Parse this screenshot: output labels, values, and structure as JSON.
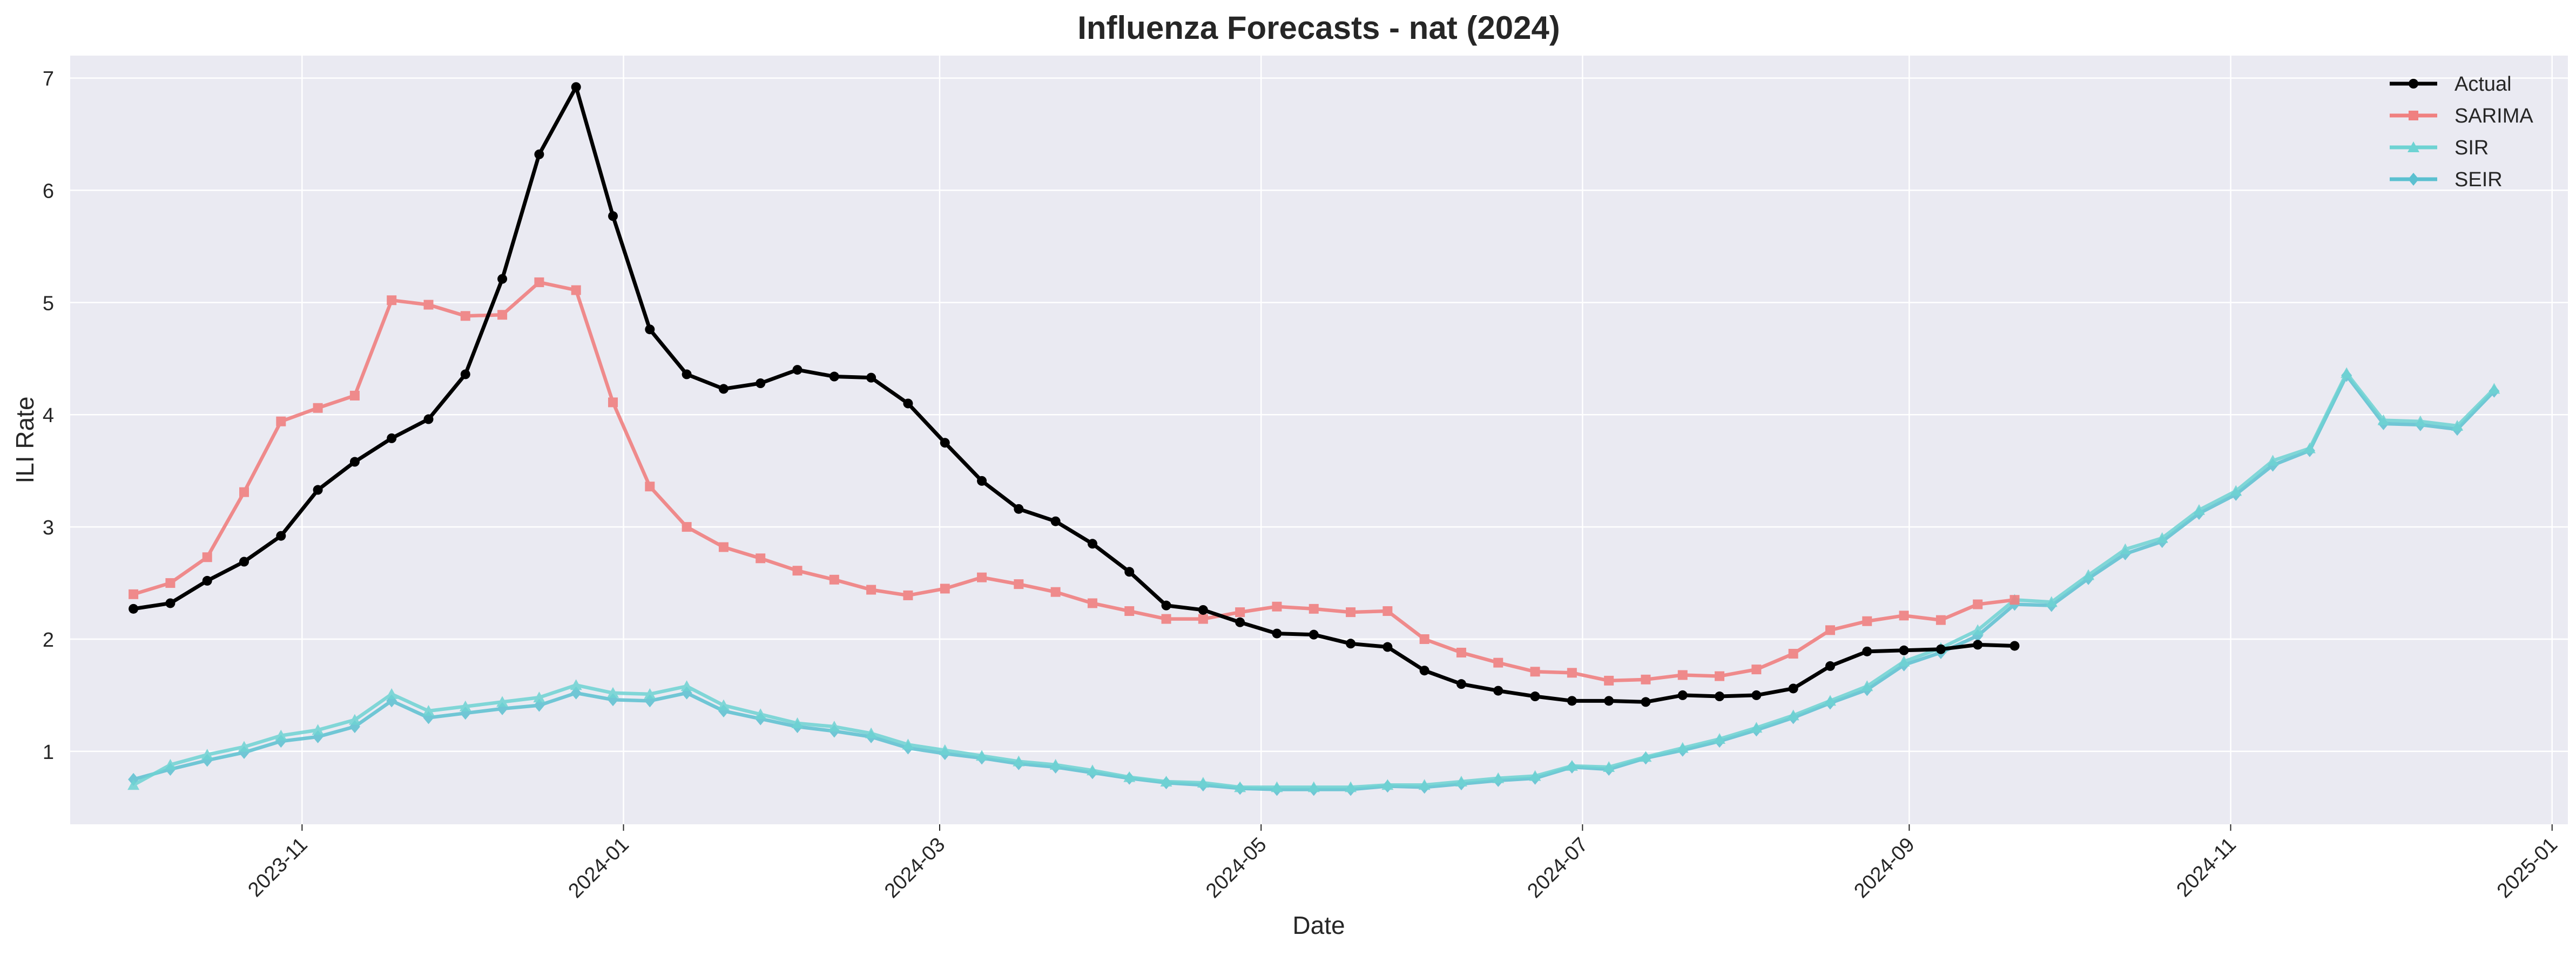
{
  "chart_data": {
    "type": "line",
    "title": "Influenza Forecasts - nat (2024)",
    "xlabel": "Date",
    "ylabel": "ILI Rate",
    "grid": true,
    "legend_position": "top-right",
    "xlim": [
      "2023-09-18",
      "2025-01-04"
    ],
    "ylim": [
      0.35,
      7.2
    ],
    "y_ticks": [
      1,
      2,
      3,
      4,
      5,
      6,
      7
    ],
    "x_ticks": [
      "2023-11",
      "2024-01",
      "2024-03",
      "2024-05",
      "2024-07",
      "2024-09",
      "2024-11",
      "2025-01"
    ],
    "series": [
      {
        "name": "Actual",
        "color": "#000000",
        "marker": "circle",
        "x": [
          "2023-09-30",
          "2023-10-07",
          "2023-10-14",
          "2023-10-21",
          "2023-10-28",
          "2023-11-04",
          "2023-11-11",
          "2023-11-18",
          "2023-11-25",
          "2023-12-02",
          "2023-12-09",
          "2023-12-16",
          "2023-12-23",
          "2023-12-30",
          "2024-01-06",
          "2024-01-13",
          "2024-01-20",
          "2024-01-27",
          "2024-02-03",
          "2024-02-10",
          "2024-02-17",
          "2024-02-24",
          "2024-03-02",
          "2024-03-09",
          "2024-03-16",
          "2024-03-23",
          "2024-03-30",
          "2024-04-06",
          "2024-04-13",
          "2024-04-20",
          "2024-04-27",
          "2024-05-04",
          "2024-05-11",
          "2024-05-18",
          "2024-05-25",
          "2024-06-01",
          "2024-06-08",
          "2024-06-15",
          "2024-06-22",
          "2024-06-29",
          "2024-07-06",
          "2024-07-13",
          "2024-07-20",
          "2024-07-27",
          "2024-08-03",
          "2024-08-10",
          "2024-08-17",
          "2024-08-24",
          "2024-08-31",
          "2024-09-07",
          "2024-09-14",
          "2024-09-21"
        ],
        "values": [
          2.27,
          2.32,
          2.52,
          2.69,
          2.92,
          3.33,
          3.58,
          3.79,
          3.96,
          4.36,
          5.21,
          6.32,
          6.92,
          5.77,
          4.76,
          4.36,
          4.23,
          4.28,
          4.4,
          4.34,
          4.33,
          4.1,
          3.75,
          3.41,
          3.16,
          3.05,
          2.85,
          2.6,
          2.3,
          2.26,
          2.15,
          2.05,
          2.04,
          1.96,
          1.93,
          1.72,
          1.6,
          1.54,
          1.49,
          1.45,
          1.45,
          1.44,
          1.5,
          1.49,
          1.5,
          1.56,
          1.76,
          1.89,
          1.9,
          1.91,
          1.95,
          1.94
        ]
      },
      {
        "name": "SARIMA",
        "color": "#f08080",
        "marker": "square",
        "x": [
          "2023-09-30",
          "2023-10-07",
          "2023-10-14",
          "2023-10-21",
          "2023-10-28",
          "2023-11-04",
          "2023-11-11",
          "2023-11-18",
          "2023-11-25",
          "2023-12-02",
          "2023-12-09",
          "2023-12-16",
          "2023-12-23",
          "2023-12-30",
          "2024-01-06",
          "2024-01-13",
          "2024-01-20",
          "2024-01-27",
          "2024-02-03",
          "2024-02-10",
          "2024-02-17",
          "2024-02-24",
          "2024-03-02",
          "2024-03-09",
          "2024-03-16",
          "2024-03-23",
          "2024-03-30",
          "2024-04-06",
          "2024-04-13",
          "2024-04-20",
          "2024-04-27",
          "2024-05-04",
          "2024-05-11",
          "2024-05-18",
          "2024-05-25",
          "2024-06-01",
          "2024-06-08",
          "2024-06-15",
          "2024-06-22",
          "2024-06-29",
          "2024-07-06",
          "2024-07-13",
          "2024-07-20",
          "2024-07-27",
          "2024-08-03",
          "2024-08-10",
          "2024-08-17",
          "2024-08-24",
          "2024-08-31",
          "2024-09-07",
          "2024-09-14",
          "2024-09-21"
        ],
        "values": [
          2.4,
          2.5,
          2.73,
          3.31,
          3.94,
          4.06,
          4.17,
          5.02,
          4.98,
          4.88,
          4.89,
          5.18,
          5.11,
          4.11,
          3.36,
          3.0,
          2.82,
          2.72,
          2.61,
          2.53,
          2.44,
          2.39,
          2.45,
          2.55,
          2.49,
          2.42,
          2.32,
          2.25,
          2.18,
          2.18,
          2.24,
          2.29,
          2.27,
          2.24,
          2.25,
          2.0,
          1.88,
          1.79,
          1.71,
          1.7,
          1.63,
          1.64,
          1.68,
          1.67,
          1.73,
          1.87,
          2.08,
          2.16,
          2.21,
          2.17,
          2.31,
          2.35
        ]
      },
      {
        "name": "SIR",
        "color": "#6ed3d3",
        "marker": "triangle",
        "x": [
          "2023-09-30",
          "2023-10-07",
          "2023-10-14",
          "2023-10-21",
          "2023-10-28",
          "2023-11-04",
          "2023-11-11",
          "2023-11-18",
          "2023-11-25",
          "2023-12-02",
          "2023-12-09",
          "2023-12-16",
          "2023-12-23",
          "2023-12-30",
          "2024-01-06",
          "2024-01-13",
          "2024-01-20",
          "2024-01-27",
          "2024-02-03",
          "2024-02-10",
          "2024-02-17",
          "2024-02-24",
          "2024-03-02",
          "2024-03-09",
          "2024-03-16",
          "2024-03-23",
          "2024-03-30",
          "2024-04-06",
          "2024-04-13",
          "2024-04-20",
          "2024-04-27",
          "2024-05-04",
          "2024-05-11",
          "2024-05-18",
          "2024-05-25",
          "2024-06-01",
          "2024-06-08",
          "2024-06-15",
          "2024-06-22",
          "2024-06-29",
          "2024-07-06",
          "2024-07-13",
          "2024-07-20",
          "2024-07-27",
          "2024-08-03",
          "2024-08-10",
          "2024-08-17",
          "2024-08-24",
          "2024-08-31",
          "2024-09-07",
          "2024-09-14",
          "2024-09-21",
          "2024-09-28",
          "2024-10-05",
          "2024-10-12",
          "2024-10-19",
          "2024-10-26",
          "2024-11-02",
          "2024-11-09",
          "2024-11-16",
          "2024-11-23",
          "2024-11-30",
          "2024-12-07",
          "2024-12-14",
          "2024-12-21"
        ],
        "values": [
          0.7,
          0.88,
          0.97,
          1.04,
          1.14,
          1.19,
          1.28,
          1.51,
          1.36,
          1.4,
          1.44,
          1.48,
          1.59,
          1.52,
          1.51,
          1.58,
          1.41,
          1.33,
          1.25,
          1.22,
          1.16,
          1.06,
          1.01,
          0.96,
          0.91,
          0.88,
          0.83,
          0.77,
          0.73,
          0.72,
          0.68,
          0.68,
          0.68,
          0.68,
          0.7,
          0.7,
          0.73,
          0.76,
          0.78,
          0.87,
          0.86,
          0.95,
          1.03,
          1.11,
          1.21,
          1.32,
          1.45,
          1.58,
          1.8,
          1.92,
          2.08,
          2.35,
          2.33,
          2.57,
          2.8,
          2.9,
          3.15,
          3.32,
          3.59,
          3.7,
          4.37,
          3.95,
          3.94,
          3.9,
          4.23
        ]
      },
      {
        "name": "SEIR",
        "color": "#5bc0d0",
        "marker": "diamond",
        "x": [
          "2023-09-30",
          "2023-10-07",
          "2023-10-14",
          "2023-10-21",
          "2023-10-28",
          "2023-11-04",
          "2023-11-11",
          "2023-11-18",
          "2023-11-25",
          "2023-12-02",
          "2023-12-09",
          "2023-12-16",
          "2023-12-23",
          "2023-12-30",
          "2024-01-06",
          "2024-01-13",
          "2024-01-20",
          "2024-01-27",
          "2024-02-03",
          "2024-02-10",
          "2024-02-17",
          "2024-02-24",
          "2024-03-02",
          "2024-03-09",
          "2024-03-16",
          "2024-03-23",
          "2024-03-30",
          "2024-04-06",
          "2024-04-13",
          "2024-04-20",
          "2024-04-27",
          "2024-05-04",
          "2024-05-11",
          "2024-05-18",
          "2024-05-25",
          "2024-06-01",
          "2024-06-08",
          "2024-06-15",
          "2024-06-22",
          "2024-06-29",
          "2024-07-06",
          "2024-07-13",
          "2024-07-20",
          "2024-07-27",
          "2024-08-03",
          "2024-08-10",
          "2024-08-17",
          "2024-08-24",
          "2024-08-31",
          "2024-09-07",
          "2024-09-14",
          "2024-09-21",
          "2024-09-28",
          "2024-10-05",
          "2024-10-12",
          "2024-10-19",
          "2024-10-26",
          "2024-11-02",
          "2024-11-09",
          "2024-11-16",
          "2024-11-23",
          "2024-11-30",
          "2024-12-07",
          "2024-12-14",
          "2024-12-21"
        ],
        "values": [
          0.75,
          0.84,
          0.92,
          0.99,
          1.09,
          1.13,
          1.22,
          1.45,
          1.3,
          1.34,
          1.38,
          1.41,
          1.52,
          1.46,
          1.45,
          1.52,
          1.36,
          1.29,
          1.22,
          1.18,
          1.13,
          1.03,
          0.98,
          0.94,
          0.89,
          0.86,
          0.81,
          0.76,
          0.72,
          0.7,
          0.67,
          0.66,
          0.66,
          0.66,
          0.69,
          0.68,
          0.71,
          0.74,
          0.76,
          0.86,
          0.84,
          0.94,
          1.01,
          1.09,
          1.19,
          1.3,
          1.43,
          1.55,
          1.77,
          1.88,
          2.03,
          2.31,
          2.3,
          2.54,
          2.76,
          2.87,
          3.12,
          3.29,
          3.55,
          3.68,
          4.35,
          3.92,
          3.91,
          3.87,
          4.21
        ]
      }
    ]
  }
}
